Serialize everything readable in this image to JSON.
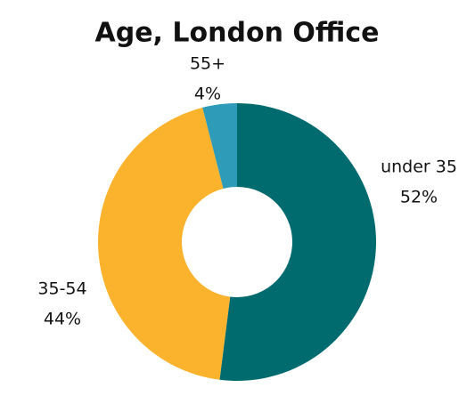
{
  "chart_data": {
    "type": "donut",
    "title": "Age, London Office",
    "categories": [
      "under 35",
      "35-54",
      "55+"
    ],
    "values": [
      52,
      44,
      4
    ],
    "value_labels": [
      "52%",
      "44%",
      "4%"
    ],
    "colors": [
      "#006b6e",
      "#fbb22c",
      "#2e9bb8"
    ]
  }
}
